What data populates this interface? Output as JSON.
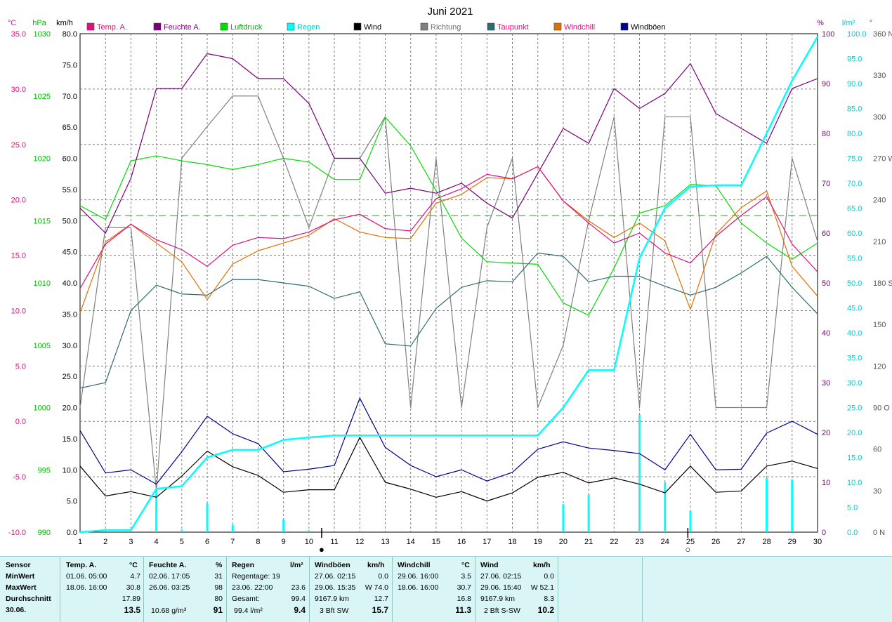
{
  "chart_data": {
    "type": "line",
    "title": "Juni 2021",
    "x": [
      1,
      2,
      3,
      4,
      5,
      6,
      7,
      8,
      9,
      10,
      11,
      12,
      13,
      14,
      15,
      16,
      17,
      18,
      19,
      20,
      21,
      22,
      23,
      24,
      25,
      26,
      27,
      28,
      29,
      30
    ],
    "axes": {
      "temp_c": {
        "unit": "°C",
        "ticks": [
          "35.0",
          "30.0",
          "25.0",
          "20.0",
          "15.0",
          "10.0",
          "5.0",
          "0.0",
          "-5.0",
          "-10.0"
        ],
        "range": [
          -10,
          35
        ]
      },
      "pressure_hpa": {
        "unit": "hPa",
        "ticks": [
          "1030",
          "1025",
          "1020",
          "1015",
          "1010",
          "1005",
          "1000",
          "995",
          "990"
        ],
        "range": [
          990,
          1030
        ]
      },
      "wind_kmh": {
        "unit": "km/h",
        "ticks": [
          "80.0",
          "75.0",
          "70.0",
          "65.0",
          "60.0",
          "55.0",
          "50.0",
          "45.0",
          "40.0",
          "35.0",
          "30.0",
          "25.0",
          "20.0",
          "15.0",
          "10.0",
          "5.0",
          "0.0"
        ],
        "range": [
          0,
          80
        ]
      },
      "humidity_pct": {
        "unit": "%",
        "ticks": [
          "100",
          "90",
          "80",
          "70",
          "60",
          "50",
          "40",
          "30",
          "20",
          "10",
          "0"
        ],
        "range": [
          0,
          100
        ]
      },
      "rain_lm2": {
        "unit": "l/m²",
        "ticks": [
          "100.0",
          "95.0",
          "90.0",
          "85.0",
          "80.0",
          "75.0",
          "70.0",
          "65.0",
          "60.0",
          "55.0",
          "50.0",
          "45.0",
          "40.0",
          "35.0",
          "30.0",
          "25.0",
          "20.0",
          "15.0",
          "10.0",
          "5.0",
          "0.0"
        ],
        "range": [
          0,
          100
        ]
      },
      "direction_deg": {
        "unit": "°",
        "ticks": [
          "360 N",
          "330",
          "300",
          "270 W",
          "240",
          "210",
          "180 S",
          "150",
          "120",
          "90 O",
          "60",
          "30",
          "0 N"
        ],
        "range": [
          0,
          360
        ]
      }
    },
    "series": [
      {
        "name": "Temp. A.",
        "color": "#e0107f",
        "axis": "temp_c",
        "values": [
          12.0,
          16.0,
          17.8,
          16.4,
          15.5,
          14.0,
          15.9,
          16.6,
          16.5,
          17.1,
          18.2,
          18.7,
          17.4,
          17.2,
          20.1,
          21.0,
          22.3,
          21.9,
          23.0,
          19.9,
          17.9,
          16.1,
          17.0,
          15.2,
          14.3,
          16.7,
          18.6,
          20.3,
          16.0,
          13.5
        ]
      },
      {
        "name": "Feuchte A.",
        "color": "#7a007a",
        "axis": "humidity_pct",
        "values": [
          65,
          60,
          71,
          89,
          89,
          96,
          95,
          91,
          91,
          86,
          75,
          75,
          68,
          69,
          68,
          70,
          66,
          63,
          72,
          81,
          78,
          89,
          85,
          88,
          94,
          84,
          81,
          78,
          89,
          91
        ]
      },
      {
        "name": "Luftdruck",
        "color": "#00dd00",
        "axis": "pressure_hpa",
        "values": [
          1016.2,
          1015.1,
          1019.8,
          1020.2,
          1019.8,
          1019.5,
          1019.1,
          1019.5,
          1020.0,
          1019.7,
          1018.3,
          1018.3,
          1023.3,
          1021.0,
          1017.4,
          1013.6,
          1011.7,
          1011.6,
          1011.5,
          1008.4,
          1007.4,
          1011.2,
          1015.6,
          1016.2,
          1017.9,
          1017.8,
          1014.8,
          1013.2,
          1011.9,
          1013.2
        ]
      },
      {
        "name": "Regen",
        "color": "#00ffff",
        "axis": "rain_lm2",
        "values": [
          0.0,
          0.4,
          0.4,
          8.7,
          9.2,
          15.0,
          16.5,
          16.5,
          18.5,
          19.0,
          19.4,
          19.4,
          19.4,
          19.4,
          19.4,
          19.4,
          19.4,
          19.4,
          19.4,
          25.0,
          32.5,
          32.5,
          55.0,
          65.0,
          69.3,
          69.6,
          69.6,
          80.0,
          90.6,
          99.4
        ]
      },
      {
        "name": "Wind",
        "color": "#000000",
        "axis": "wind_kmh",
        "values": [
          10.6,
          5.8,
          6.5,
          5.6,
          9.0,
          13.0,
          10.5,
          9.1,
          6.4,
          6.8,
          6.8,
          15.2,
          8.0,
          6.9,
          5.6,
          6.5,
          5.0,
          6.3,
          8.8,
          9.6,
          7.9,
          8.7,
          7.7,
          6.3,
          10.6,
          6.4,
          6.6,
          10.6,
          11.4,
          10.2
        ]
      },
      {
        "name": "Richtung",
        "color": "#808080",
        "axis": "direction_deg",
        "values": [
          90,
          220,
          220,
          30,
          270,
          293,
          315,
          315,
          270,
          220,
          270,
          270,
          300,
          90,
          270,
          90,
          220,
          270,
          90,
          135,
          225,
          300,
          90,
          300,
          300,
          90,
          90,
          90,
          270,
          210
        ]
      },
      {
        "name": "Taupunkt",
        "color": "#2e6b73",
        "axis": "temp_c",
        "values": [
          3.0,
          3.5,
          10.0,
          12.3,
          11.5,
          11.4,
          12.8,
          12.8,
          12.5,
          12.2,
          11.1,
          11.7,
          7.0,
          6.8,
          10.2,
          12.1,
          12.7,
          12.6,
          15.2,
          14.9,
          12.6,
          13.1,
          13.1,
          12.2,
          11.4,
          12.1,
          13.4,
          14.9,
          12.1,
          9.7
        ]
      },
      {
        "name": "Windchill",
        "color": "#e07000",
        "axis": "temp_c",
        "values": [
          9.8,
          16.2,
          17.8,
          16.1,
          14.4,
          11.0,
          14.2,
          15.4,
          16.1,
          16.8,
          18.3,
          17.1,
          16.6,
          16.5,
          19.7,
          20.5,
          22.0,
          21.9,
          23.0,
          19.9,
          18.1,
          16.6,
          17.9,
          16.3,
          10.1,
          16.9,
          19.3,
          20.8,
          14.0,
          11.3
        ]
      },
      {
        "name": "Windböen",
        "color": "#000090",
        "axis": "wind_kmh",
        "values": [
          16.3,
          9.5,
          10.0,
          7.7,
          12.9,
          18.6,
          15.8,
          14.2,
          9.7,
          10.1,
          10.7,
          21.5,
          13.6,
          10.7,
          8.9,
          10.0,
          8.2,
          9.6,
          13.3,
          14.5,
          13.5,
          13.1,
          12.6,
          10.0,
          15.7,
          10.0,
          10.1,
          15.9,
          17.8,
          15.7
        ]
      }
    ],
    "daily_rain": {
      "name": "Regen (Tag)",
      "color": "#00ffff",
      "axis": "rain_lm2",
      "values": [
        0,
        0,
        0,
        8.7,
        0.5,
        5.8,
        1.5,
        0,
        2.5,
        0.4,
        0,
        0,
        0,
        0,
        0,
        0,
        0,
        0,
        0,
        5.6,
        7.5,
        0,
        23.6,
        10.0,
        4.3,
        0,
        0,
        10.8,
        10.6,
        0
      ]
    },
    "avg_pressure_line": 1015.4,
    "moon_markers": [
      {
        "day": 10.5,
        "symbol": "●"
      },
      {
        "day": 24.9,
        "symbol": "○"
      }
    ]
  },
  "legend": [
    {
      "label": "Temp. A.",
      "color": "#e0107f",
      "text_color": "#e0107f"
    },
    {
      "label": "Feuchte A.",
      "color": "#7a007a",
      "text_color": "#7a007a"
    },
    {
      "label": "Luftdruck",
      "color": "#00dd00",
      "text_color": "#00aa00"
    },
    {
      "label": "Regen",
      "color": "#00ffff",
      "text_color": "#00cccc"
    },
    {
      "label": "Wind",
      "color": "#000000",
      "text_color": "#000000"
    },
    {
      "label": "Richtung",
      "color": "#808080",
      "text_color": "#707070"
    },
    {
      "label": "Taupunkt",
      "color": "#2e6b73",
      "text_color": "#e0107f"
    },
    {
      "label": "Windchill",
      "color": "#e07000",
      "text_color": "#e0107f"
    },
    {
      "label": "Windböen",
      "color": "#000090",
      "text_color": "#000000"
    }
  ],
  "table": {
    "sensor": {
      "head": "Sensor",
      "rows": [
        "MinWert",
        "MaxWert",
        "Durchschnitt",
        "30.06."
      ]
    },
    "temp": {
      "head": "Temp. A.",
      "unit": "°C",
      "min_date": "01.06.  05:00",
      "min": "4.7",
      "max_date": "18.06.  16:00",
      "max": "30.8",
      "avg": "17.89",
      "cur": "13.5"
    },
    "humid": {
      "head": "Feuchte A.",
      "unit": "%",
      "min_date": "02.06.  17:05",
      "min": "31",
      "max_date": "26.06.  03:25",
      "max": "98",
      "avg": "80",
      "extra": "10.68 g/m³",
      "cur": "91"
    },
    "rain": {
      "head": "Regen",
      "unit": "l/m²",
      "l1": "Regentage: 19",
      "l2": "23.06.  22:00",
      "v2": "23.6",
      "l3": "Gesamt:",
      "v3": "99.4",
      "l4": "99.4 l/m²",
      "cur": "9.4"
    },
    "gust": {
      "head": "Windböen",
      "unit": "km/h",
      "min_date": "27.06.  02:15",
      "min": "0.0",
      "max_date": "29.06.  15:35",
      "max": "W 74.0",
      "dist": "9167.9 km",
      "avg": "12.7",
      "bft": "3 Bft SW",
      "cur": "15.7"
    },
    "chill": {
      "head": "Windchill",
      "unit": "°C",
      "min_date": "29.06.  16:00",
      "min": "3.5",
      "max_date": "18.06.  16:00",
      "max": "30.7",
      "avg": "16.8",
      "cur": "11.3"
    },
    "wind": {
      "head": "Wind",
      "unit": "km/h",
      "min_date": "27.06.  02:15",
      "min": "0.0",
      "max_date": "29.06.  15:40",
      "max": "W 52.1",
      "dist": "9167.9 km",
      "avg": "8.3",
      "bft": "2 Bft S-SW",
      "cur": "10.2"
    }
  }
}
